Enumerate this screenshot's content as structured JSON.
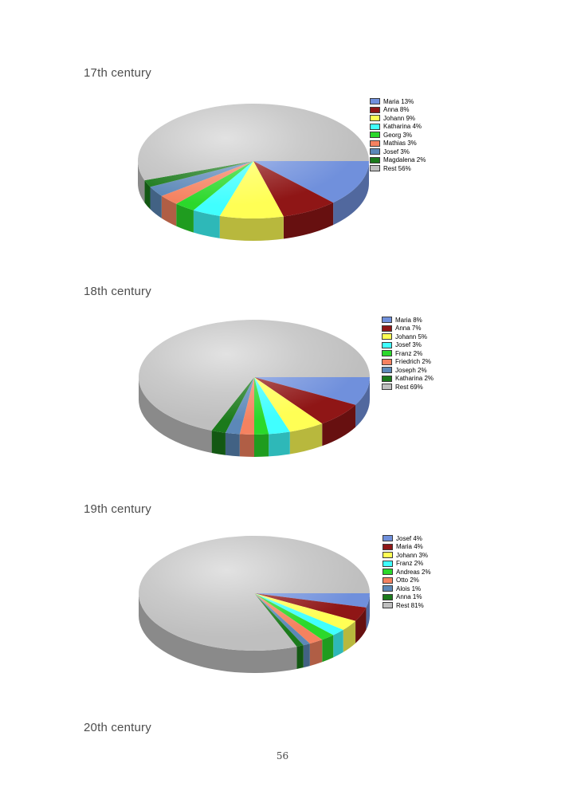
{
  "page": {
    "number": "56"
  },
  "sections": [
    {
      "heading": "17th century"
    },
    {
      "heading": "18th century"
    },
    {
      "heading": "19th century"
    },
    {
      "heading": "20th century"
    }
  ],
  "palette": {
    "slice_colors": [
      "#7090DC",
      "#8F1616",
      "#FFFF55",
      "#40FFFF",
      "#2BD82B",
      "#F58260",
      "#5C88B8",
      "#1B7A1B",
      "#BFBFBF"
    ],
    "heading_color": "#4d4d4d",
    "legend_text_color": "#000000",
    "page_background": "#ffffff"
  },
  "chart_data": [
    {
      "type": "pie",
      "style": "3d",
      "title": "17th century",
      "legend_position": "right",
      "unit": "%",
      "labels": [
        "Maria",
        "Anna",
        "Johann",
        "Katharina",
        "Georg",
        "Mathias",
        "Josef",
        "Magdalena",
        "Rest"
      ],
      "values": [
        13,
        8,
        9,
        4,
        3,
        3,
        3,
        2,
        56
      ],
      "colors": [
        "#7090DC",
        "#8F1616",
        "#FFFF55",
        "#40FFFF",
        "#2BD82B",
        "#F58260",
        "#5C88B8",
        "#1B7A1B",
        "#BFBFBF"
      ]
    },
    {
      "type": "pie",
      "style": "3d",
      "title": "18th century",
      "legend_position": "right",
      "unit": "%",
      "labels": [
        "Maria",
        "Anna",
        "Johann",
        "Josef",
        "Franz",
        "Friedrich",
        "Joseph",
        "Katharina",
        "Rest"
      ],
      "values": [
        8,
        7,
        5,
        3,
        2,
        2,
        2,
        2,
        69
      ],
      "colors": [
        "#7090DC",
        "#8F1616",
        "#FFFF55",
        "#40FFFF",
        "#2BD82B",
        "#F58260",
        "#5C88B8",
        "#1B7A1B",
        "#BFBFBF"
      ]
    },
    {
      "type": "pie",
      "style": "3d",
      "title": "19th century",
      "legend_position": "right",
      "unit": "%",
      "labels": [
        "Josef",
        "Maria",
        "Johann",
        "Franz",
        "Andreas",
        "Otto",
        "Alois",
        "Anna",
        "Rest"
      ],
      "values": [
        4,
        4,
        3,
        2,
        2,
        2,
        1,
        1,
        81
      ],
      "colors": [
        "#7090DC",
        "#8F1616",
        "#FFFF55",
        "#40FFFF",
        "#2BD82B",
        "#F58260",
        "#5C88B8",
        "#1B7A1B",
        "#BFBFBF"
      ]
    }
  ]
}
